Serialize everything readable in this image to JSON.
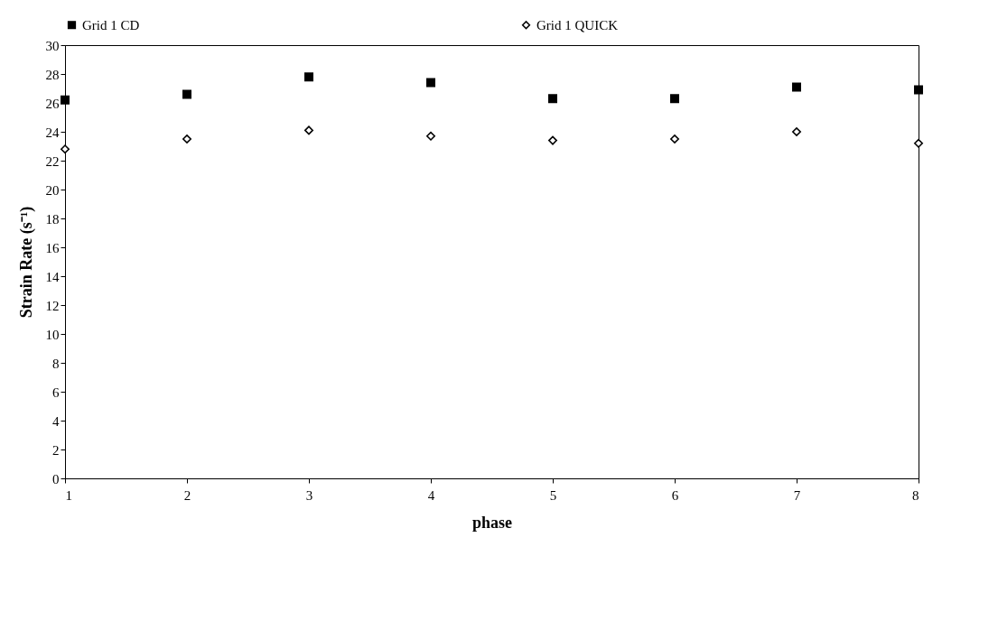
{
  "chart_data": {
    "type": "scatter",
    "xlabel": "phase",
    "ylabel": "Strain Rate (s⁻¹)",
    "x": [
      1,
      2,
      3,
      4,
      5,
      6,
      7,
      8
    ],
    "series": [
      {
        "name": "Grid 1 CD",
        "color": "#000000",
        "marker": "square",
        "values": [
          26.2,
          26.6,
          27.8,
          27.4,
          26.3,
          26.3,
          27.1,
          26.9
        ]
      },
      {
        "name": "Grid 1 QUICK",
        "color": "#000000",
        "marker": "diamond",
        "values": [
          22.8,
          23.5,
          24.1,
          23.7,
          23.4,
          23.5,
          24.0,
          23.2
        ]
      }
    ],
    "xlim": [
      1,
      8
    ],
    "xticks": [
      1,
      2,
      3,
      4,
      5,
      6,
      7,
      8
    ],
    "ylim": [
      0,
      30
    ],
    "yticks": [
      0,
      2,
      4,
      6,
      8,
      10,
      12,
      14,
      16,
      18,
      20,
      22,
      24,
      26,
      28,
      30
    ],
    "grid": false,
    "legend": "top"
  }
}
